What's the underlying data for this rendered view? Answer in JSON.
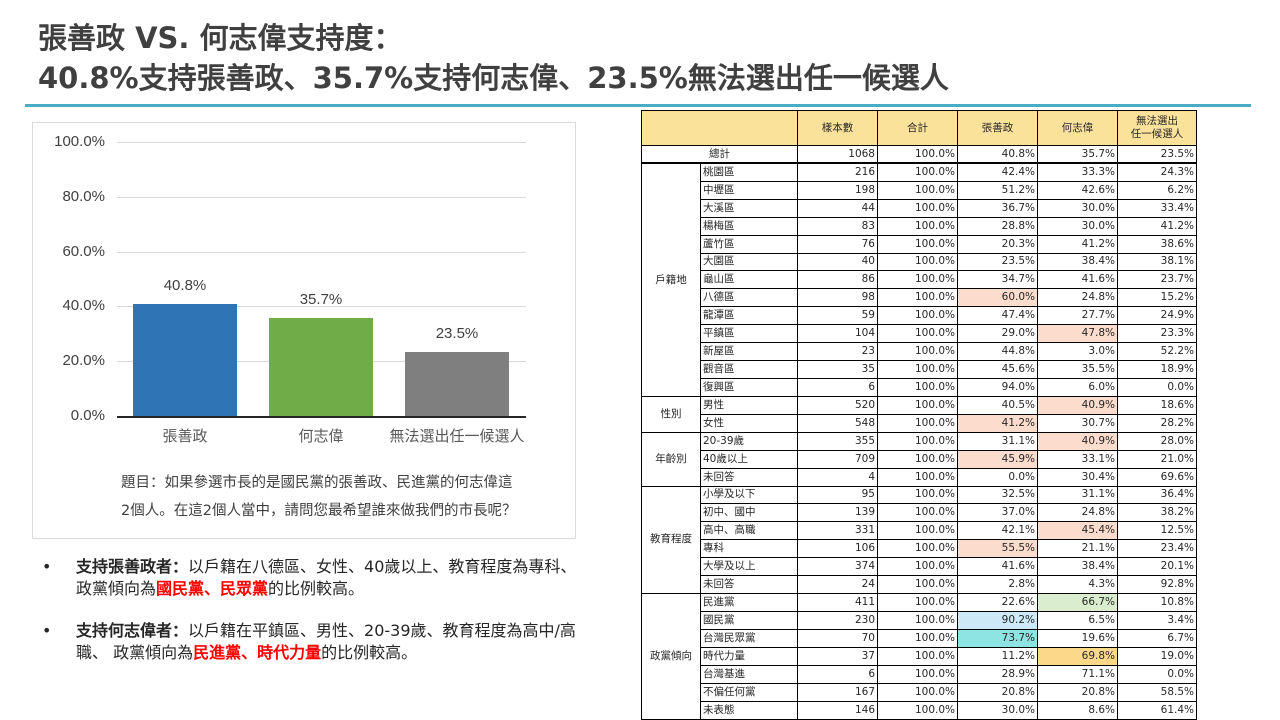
{
  "title": {
    "line1": "張善政 VS. 何志偉支持度：",
    "line2": "40.8%支持張善政、35.7%支持何志偉、23.5%無法選出任一候選人"
  },
  "colors": {
    "accent_rule": "#4bacc6",
    "bar_1": "#2e75b6",
    "bar_2": "#70ad47",
    "bar_3": "#7f7f7f",
    "table_header": "#fbe29b",
    "highlight_peach": "#fbdccd",
    "highlight_lightblue": "#cde9f8",
    "highlight_cyan": "#8ee3e3",
    "highlight_green": "#daeecf",
    "highlight_gold": "#fcd98a",
    "emphasis_red": "#ff0000"
  },
  "chart_data": {
    "type": "bar",
    "title": "",
    "categories": [
      "張善政",
      "何志偉",
      "無法選出任一候選人"
    ],
    "values": [
      40.8,
      35.7,
      23.5
    ],
    "value_labels": [
      "40.8%",
      "35.7%",
      "23.5%"
    ],
    "xlabel": "",
    "ylabel": "",
    "ylim": [
      0,
      100
    ],
    "yticks": [
      "100.0%",
      "80.0%",
      "60.0%",
      "40.0%",
      "20.0%",
      "0.0%"
    ],
    "grid": true,
    "legend": "none",
    "annotation": "題目：如果參選市長的是國民黨的張善政、民進黨的何志偉這2個人。在這2個人當中，請問您最希望誰來做我們的市長呢？"
  },
  "chart": {
    "question_line1": "題目：如果參選市長的是國民黨的張善政、民進黨的何志偉這",
    "question_line2": "2個人。在這2個人當中，請問您最希望誰來做我們的市長呢？"
  },
  "bullets": [
    {
      "dot": "•",
      "lead": "支持張善政者：",
      "text1": "以戶籍在八德區、女性、40歲以上、教育程度為專科、 政黨傾向為",
      "emph": "國民黨、民眾黨",
      "text2": "的比例較高。"
    },
    {
      "dot": "•",
      "lead": "支持何志偉者：",
      "text1": "以戶籍在平鎮區、男性、20-39歲、教育程度為高中/高職、 政黨傾向為",
      "emph": "民進黨、時代力量",
      "text2": "的比例較高。"
    }
  ],
  "table": {
    "headers": [
      "",
      "樣本數",
      "合計",
      "張善政",
      "何志偉",
      "無法選出\n任一候選人"
    ],
    "header_last_line1": "無法選出",
    "header_last_line2": "任一候選人",
    "total": {
      "label": "總計",
      "n": "1068",
      "sum": "100.0%",
      "a": "40.8%",
      "b": "35.7%",
      "c": "23.5%"
    },
    "groups": [
      {
        "name": "戶籍地",
        "rows": [
          {
            "label": "桃園區",
            "n": "216",
            "sum": "100.0%",
            "a": "42.4%",
            "b": "33.3%",
            "c": "24.3%"
          },
          {
            "label": "中壢區",
            "n": "198",
            "sum": "100.0%",
            "a": "51.2%",
            "b": "42.6%",
            "c": "6.2%"
          },
          {
            "label": "大溪區",
            "n": "44",
            "sum": "100.0%",
            "a": "36.7%",
            "b": "30.0%",
            "c": "33.4%"
          },
          {
            "label": "楊梅區",
            "n": "83",
            "sum": "100.0%",
            "a": "28.8%",
            "b": "30.0%",
            "c": "41.2%"
          },
          {
            "label": "蘆竹區",
            "n": "76",
            "sum": "100.0%",
            "a": "20.3%",
            "b": "41.2%",
            "c": "38.6%"
          },
          {
            "label": "大園區",
            "n": "40",
            "sum": "100.0%",
            "a": "23.5%",
            "b": "38.4%",
            "c": "38.1%"
          },
          {
            "label": "龜山區",
            "n": "86",
            "sum": "100.0%",
            "a": "34.7%",
            "b": "41.6%",
            "c": "23.7%"
          },
          {
            "label": "八德區",
            "n": "98",
            "sum": "100.0%",
            "a": "60.0%",
            "b": "24.8%",
            "c": "15.2%",
            "hl_a": "hl-peach"
          },
          {
            "label": "龍潭區",
            "n": "59",
            "sum": "100.0%",
            "a": "47.4%",
            "b": "27.7%",
            "c": "24.9%"
          },
          {
            "label": "平鎮區",
            "n": "104",
            "sum": "100.0%",
            "a": "29.0%",
            "b": "47.8%",
            "c": "23.3%",
            "hl_b": "hl-peach"
          },
          {
            "label": "新屋區",
            "n": "23",
            "sum": "100.0%",
            "a": "44.8%",
            "b": "3.0%",
            "c": "52.2%"
          },
          {
            "label": "觀音區",
            "n": "35",
            "sum": "100.0%",
            "a": "45.6%",
            "b": "35.5%",
            "c": "18.9%"
          },
          {
            "label": "復興區",
            "n": "6",
            "sum": "100.0%",
            "a": "94.0%",
            "b": "6.0%",
            "c": "0.0%"
          }
        ]
      },
      {
        "name": "性別",
        "rows": [
          {
            "label": "男性",
            "n": "520",
            "sum": "100.0%",
            "a": "40.5%",
            "b": "40.9%",
            "c": "18.6%",
            "hl_b": "hl-peach"
          },
          {
            "label": "女性",
            "n": "548",
            "sum": "100.0%",
            "a": "41.2%",
            "b": "30.7%",
            "c": "28.2%",
            "hl_a": "hl-peach"
          }
        ]
      },
      {
        "name": "年齡別",
        "rows": [
          {
            "label": "20-39歲",
            "n": "355",
            "sum": "100.0%",
            "a": "31.1%",
            "b": "40.9%",
            "c": "28.0%",
            "hl_b": "hl-peach"
          },
          {
            "label": "40歲以上",
            "n": "709",
            "sum": "100.0%",
            "a": "45.9%",
            "b": "33.1%",
            "c": "21.0%",
            "hl_a": "hl-peach"
          },
          {
            "label": "未回答",
            "n": "4",
            "sum": "100.0%",
            "a": "0.0%",
            "b": "30.4%",
            "c": "69.6%"
          }
        ]
      },
      {
        "name": "教育程度",
        "rows": [
          {
            "label": "小學及以下",
            "n": "95",
            "sum": "100.0%",
            "a": "32.5%",
            "b": "31.1%",
            "c": "36.4%"
          },
          {
            "label": "初中、國中",
            "n": "139",
            "sum": "100.0%",
            "a": "37.0%",
            "b": "24.8%",
            "c": "38.2%"
          },
          {
            "label": "高中、高職",
            "n": "331",
            "sum": "100.0%",
            "a": "42.1%",
            "b": "45.4%",
            "c": "12.5%",
            "hl_b": "hl-peach"
          },
          {
            "label": "專科",
            "n": "106",
            "sum": "100.0%",
            "a": "55.5%",
            "b": "21.1%",
            "c": "23.4%",
            "hl_a": "hl-peach"
          },
          {
            "label": "大學及以上",
            "n": "374",
            "sum": "100.0%",
            "a": "41.6%",
            "b": "38.4%",
            "c": "20.1%"
          },
          {
            "label": "未回答",
            "n": "24",
            "sum": "100.0%",
            "a": "2.8%",
            "b": "4.3%",
            "c": "92.8%"
          }
        ]
      },
      {
        "name": "政黨傾向",
        "rows": [
          {
            "label": "民進黨",
            "n": "411",
            "sum": "100.0%",
            "a": "22.6%",
            "b": "66.7%",
            "c": "10.8%",
            "hl_b": "hl-green"
          },
          {
            "label": "國民黨",
            "n": "230",
            "sum": "100.0%",
            "a": "90.2%",
            "b": "6.5%",
            "c": "3.4%",
            "hl_a": "hl-lightblue"
          },
          {
            "label": "台灣民眾黨",
            "n": "70",
            "sum": "100.0%",
            "a": "73.7%",
            "b": "19.6%",
            "c": "6.7%",
            "hl_a": "hl-cyan"
          },
          {
            "label": "時代力量",
            "n": "37",
            "sum": "100.0%",
            "a": "11.2%",
            "b": "69.8%",
            "c": "19.0%",
            "hl_b": "hl-gold"
          },
          {
            "label": "台灣基進",
            "n": "6",
            "sum": "100.0%",
            "a": "28.9%",
            "b": "71.1%",
            "c": "0.0%"
          },
          {
            "label": "不偏任何黨",
            "n": "167",
            "sum": "100.0%",
            "a": "20.8%",
            "b": "20.8%",
            "c": "58.5%"
          },
          {
            "label": "未表態",
            "n": "146",
            "sum": "100.0%",
            "a": "30.0%",
            "b": "8.6%",
            "c": "61.4%"
          }
        ]
      }
    ]
  }
}
